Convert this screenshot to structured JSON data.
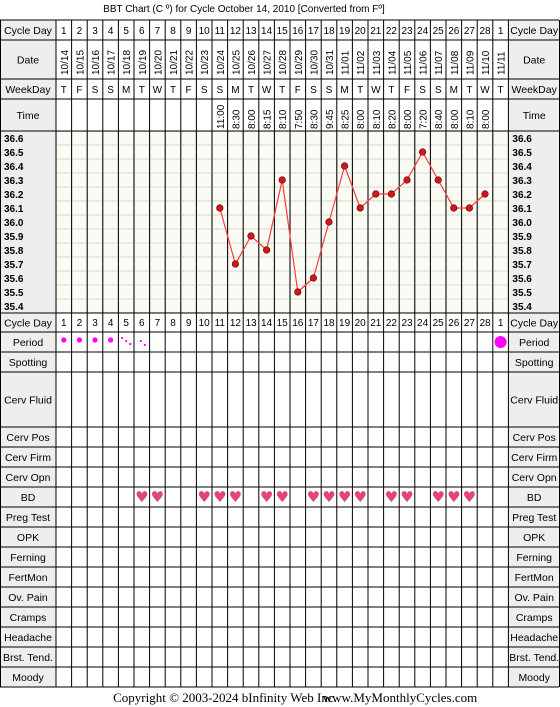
{
  "title": "BBT Chart (C º) for Cycle October 14, 2010  [Converted from Fº]",
  "footer": {
    "copyright": "Copyright © 2003-2024 bInfinity Web Inc.",
    "site": "www.MyMonthlyCycles.com"
  },
  "row_labels": {
    "cycle_day": "Cycle Day",
    "date": "Date",
    "weekday": "WeekDay",
    "time": "Time",
    "period": "Period",
    "spotting": "Spotting",
    "cerv_fluid": "Cerv Fluid",
    "cerv_pos": "Cerv Pos",
    "cerv_firm": "Cerv Firm",
    "cerv_opn": "Cerv Opn",
    "bd": "BD",
    "preg_test": "Preg Test",
    "opk": "OPK",
    "ferning": "Ferning",
    "fertmon": "FertMon",
    "ov_pain": "Ov. Pain",
    "cramps": "Cramps",
    "headache": "Headache",
    "brst_tend": "Brst. Tend.",
    "moody": "Moody"
  },
  "colors": {
    "line": "#ff3b3b",
    "point": "#d01818",
    "heart": "#e0457b",
    "period": "#ff00ff",
    "grid_minor": "#d6d6c6",
    "label_bg": "#eeeeee"
  },
  "days": [
    "1",
    "2",
    "3",
    "4",
    "5",
    "6",
    "7",
    "8",
    "9",
    "10",
    "11",
    "12",
    "13",
    "14",
    "15",
    "16",
    "17",
    "18",
    "19",
    "20",
    "21",
    "22",
    "23",
    "24",
    "25",
    "26",
    "27",
    "28",
    "1"
  ],
  "dates": [
    "10/14",
    "10/15",
    "10/16",
    "10/17",
    "10/18",
    "10/19",
    "10/20",
    "10/21",
    "10/22",
    "10/23",
    "10/24",
    "10/25",
    "10/26",
    "10/27",
    "10/28",
    "10/29",
    "10/30",
    "10/31",
    "11/01",
    "11/02",
    "11/03",
    "11/04",
    "11/05",
    "11/06",
    "11/07",
    "11/08",
    "11/09",
    "11/10",
    "11/11"
  ],
  "weekdays": [
    "T",
    "F",
    "S",
    "S",
    "M",
    "T",
    "W",
    "T",
    "F",
    "S",
    "S",
    "M",
    "T",
    "W",
    "T",
    "F",
    "S",
    "S",
    "M",
    "T",
    "W",
    "T",
    "F",
    "S",
    "S",
    "M",
    "T",
    "W",
    "T"
  ],
  "times": [
    "",
    "",
    "",
    "",
    "",
    "",
    "",
    "",
    "",
    "",
    "11:00",
    "8:30",
    "8:00",
    "8:15",
    "8:10",
    "7:50",
    "8:30",
    "9:45",
    "8:25",
    "8:00",
    "8:10",
    "8:20",
    "8:00",
    "7:20",
    "8:40",
    "8:00",
    "8:10",
    "8:00",
    ""
  ],
  "period": [
    "heavy",
    "heavy",
    "heavy",
    "heavy",
    "light",
    "spot",
    "",
    "",
    "",
    "",
    "",
    "",
    "",
    "",
    "",
    "",
    "",
    "",
    "",
    "",
    "",
    "",
    "",
    "",
    "",
    "",
    "",
    "",
    "big"
  ],
  "bd": [
    false,
    false,
    false,
    false,
    false,
    true,
    true,
    false,
    false,
    true,
    true,
    true,
    false,
    true,
    true,
    false,
    true,
    true,
    true,
    true,
    false,
    true,
    true,
    false,
    true,
    true,
    true,
    false,
    false
  ],
  "symbols": {
    "bd": "♥"
  },
  "chart_data": {
    "type": "line",
    "title": "BBT Chart (C º) for Cycle October 14, 2010  [Converted from Fº]",
    "xlabel": "Cycle Day",
    "ylabel": "",
    "ylim": [
      35.4,
      36.6
    ],
    "y_ticks": [
      "36.6",
      "36.5",
      "36.4",
      "36.3",
      "36.2",
      "36.1",
      "36.0",
      "35.9",
      "35.8",
      "35.7",
      "35.6",
      "35.5",
      "35.4"
    ],
    "x": [
      1,
      2,
      3,
      4,
      5,
      6,
      7,
      8,
      9,
      10,
      11,
      12,
      13,
      14,
      15,
      16,
      17,
      18,
      19,
      20,
      21,
      22,
      23,
      24,
      25,
      26,
      27,
      28
    ],
    "series": [
      {
        "values": [
          null,
          null,
          null,
          null,
          null,
          null,
          null,
          null,
          null,
          null,
          36.1,
          35.7,
          35.9,
          35.8,
          36.3,
          35.5,
          35.6,
          36.0,
          36.4,
          36.1,
          36.2,
          36.2,
          36.3,
          36.5,
          36.3,
          36.1,
          36.1,
          36.2
        ]
      }
    ]
  }
}
